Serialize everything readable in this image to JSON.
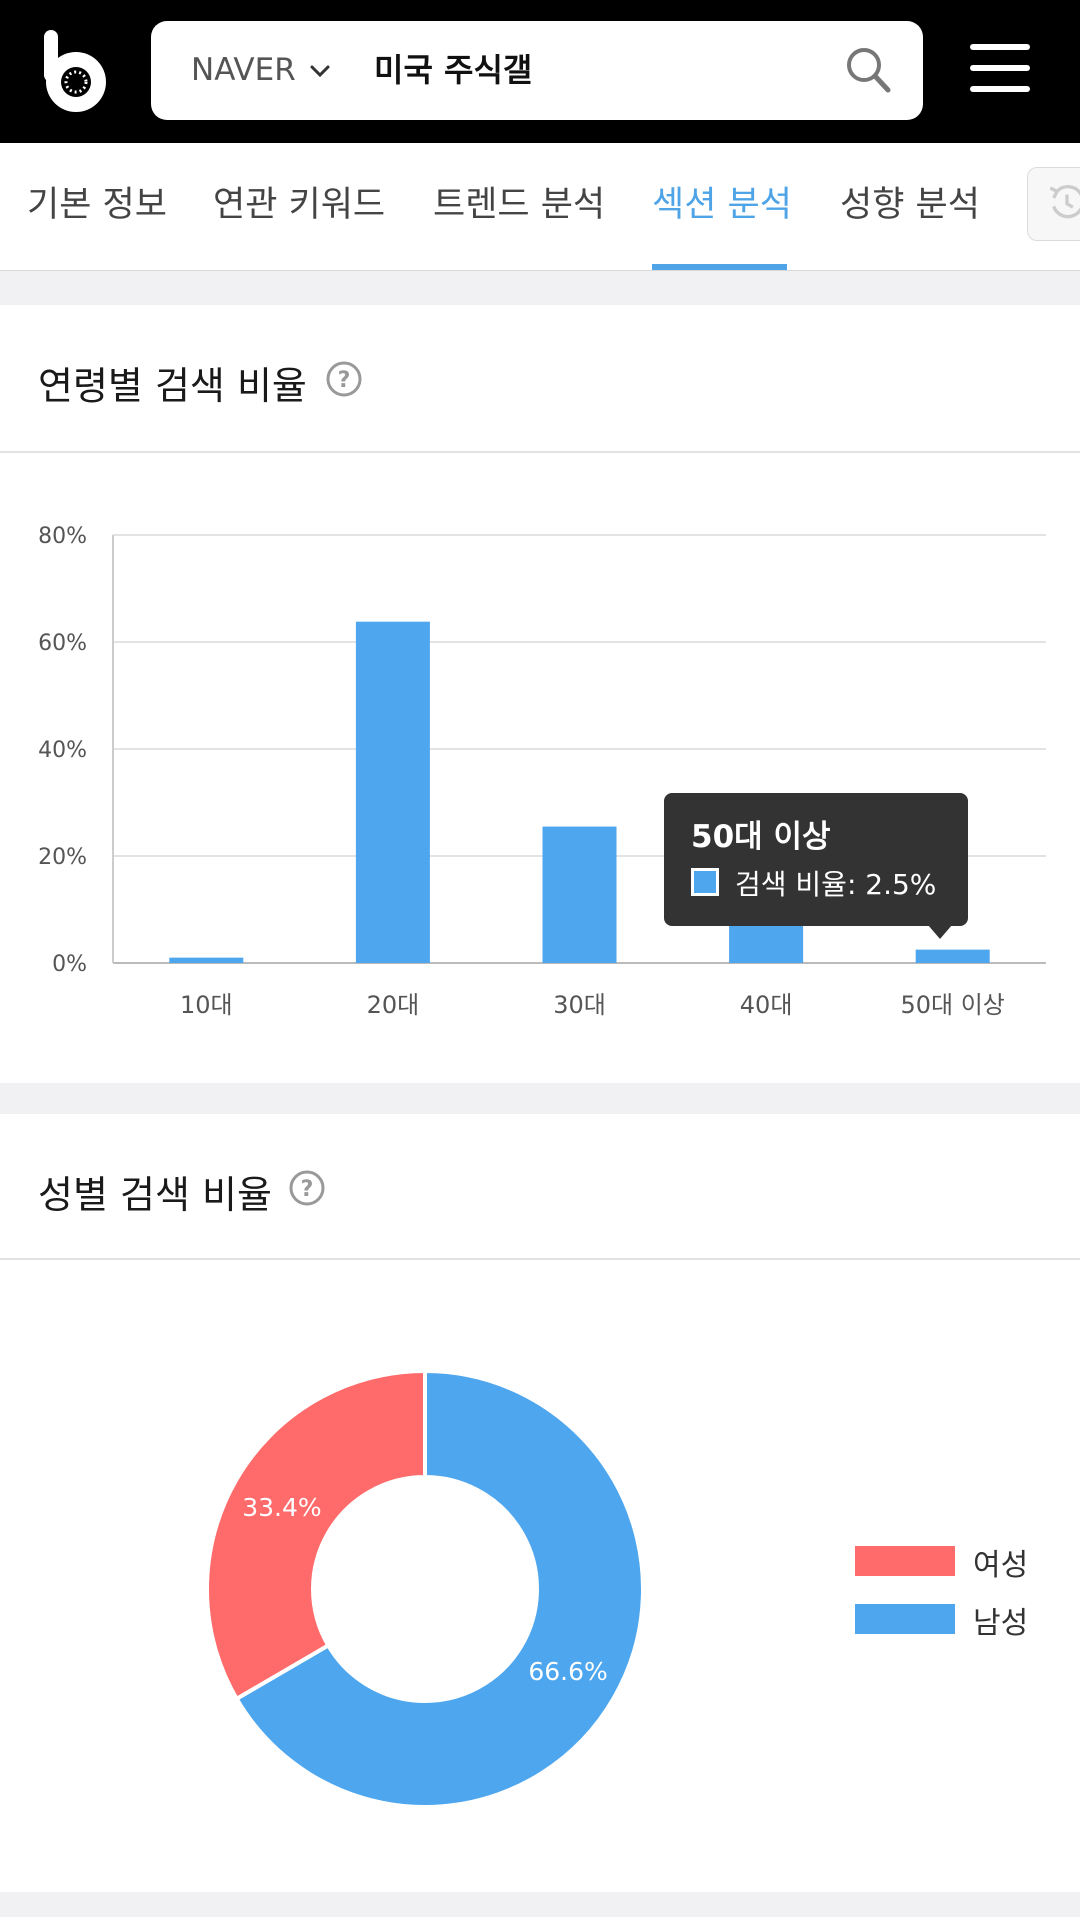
{
  "header": {
    "logo_icon": "blackkiwi-logo-icon",
    "search": {
      "engine": "NAVER",
      "query": "미국 주식갤"
    }
  },
  "tabs": [
    {
      "label": "기본 정보",
      "active": false
    },
    {
      "label": "연관 키워드",
      "active": false
    },
    {
      "label": "트렌드 분석",
      "active": false
    },
    {
      "label": "섹션 분석",
      "active": true
    },
    {
      "label": "성향 분석",
      "active": false
    }
  ],
  "colors": {
    "accent": "#4ea4e6",
    "bar": "#4da6ee",
    "female": "#ff6b6b",
    "male": "#4da6ee"
  },
  "age_card": {
    "title": "연령별 검색 비율"
  },
  "gender_card": {
    "title": "성별 검색 비율"
  },
  "tooltip": {
    "title": "50대 이상",
    "label": "검색 비율:  2.5%"
  },
  "chart_data": [
    {
      "type": "bar",
      "categories": [
        "10대",
        "20대",
        "30대",
        "40대",
        "50대 이상"
      ],
      "series": [
        {
          "name": "검색 비율",
          "values": [
            1.0,
            63.8,
            25.5,
            7.2,
            2.5
          ]
        }
      ],
      "ylim": [
        0,
        80
      ],
      "yticks": [
        "0%",
        "20%",
        "40%",
        "60%",
        "80%"
      ],
      "grid": true
    },
    {
      "type": "pie",
      "donut": true,
      "labels": [
        "여성",
        "남성"
      ],
      "values": [
        33.4,
        66.6
      ],
      "value_labels": [
        "33.4%",
        "66.6%"
      ],
      "legend": "right"
    }
  ]
}
